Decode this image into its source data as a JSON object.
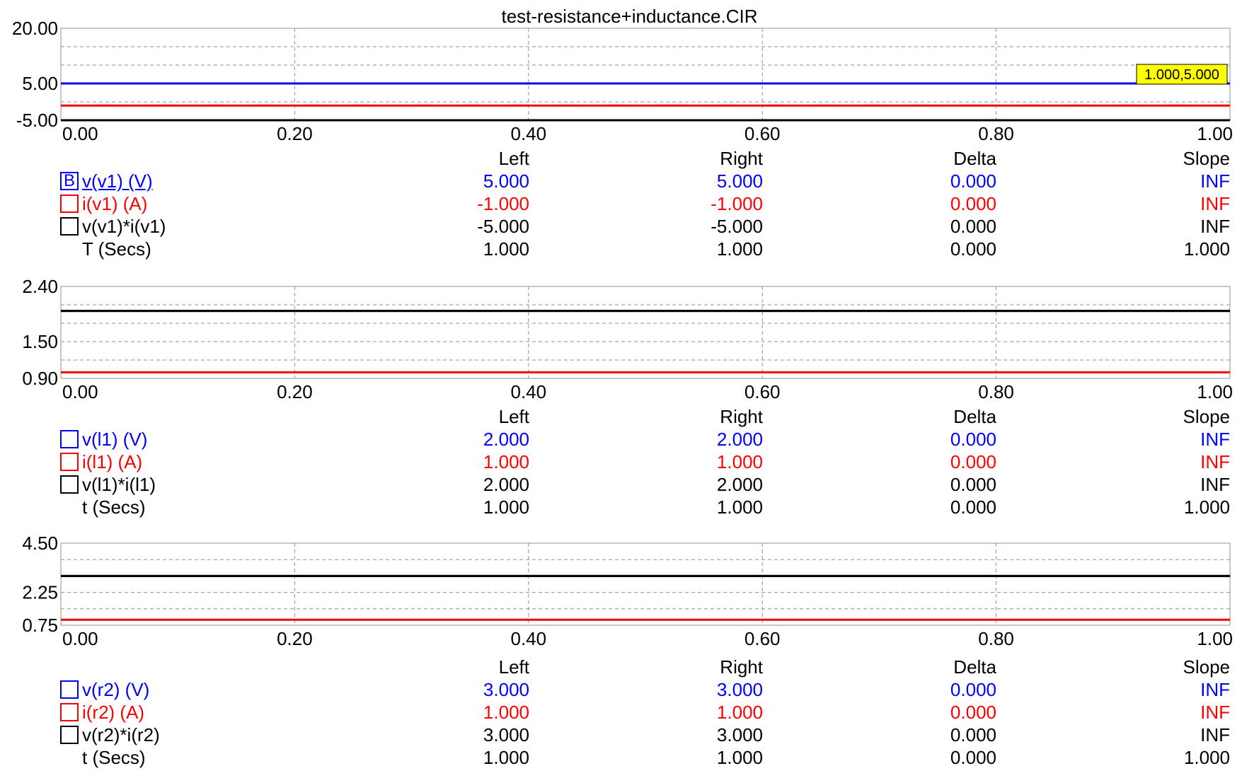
{
  "title": "test-resistance+inductance.CIR",
  "colors": {
    "blue": "#0000ff",
    "red": "#ff0000",
    "black": "#000000",
    "grid": "#909090",
    "marker": "#ffff00"
  },
  "columns": {
    "left": "Left",
    "right": "Right",
    "delta": "Delta",
    "slope": "Slope"
  },
  "chart_data": [
    {
      "type": "line",
      "x_ticks": [
        "0.00",
        "0.20",
        "0.40",
        "0.60",
        "0.80",
        "1.00"
      ],
      "xlim": [
        0,
        1
      ],
      "ylim": [
        -5,
        20
      ],
      "y_ticks": [
        "20.00",
        "5.00",
        "-5.00"
      ],
      "series": [
        {
          "name": "v(v1) (V)",
          "color": "#0000ff",
          "x": [
            0,
            1
          ],
          "y": [
            5,
            5
          ]
        },
        {
          "name": "i(v1) (A)",
          "color": "#ff0000",
          "x": [
            0,
            1
          ],
          "y": [
            -1,
            -1
          ]
        },
        {
          "name": "v(v1)*i(v1)",
          "color": "#000000",
          "x": [
            0,
            1
          ],
          "y": [
            -5,
            -5
          ]
        }
      ],
      "marker": {
        "x": 1,
        "y": 5,
        "text": "1.000,5.000"
      }
    },
    {
      "type": "line",
      "x_ticks": [
        "0.00",
        "0.20",
        "0.40",
        "0.60",
        "0.80",
        "1.00"
      ],
      "xlim": [
        0,
        1
      ],
      "ylim": [
        0.9,
        2.4
      ],
      "y_ticks": [
        "2.40",
        "1.50",
        "0.90"
      ],
      "series": [
        {
          "name": "v(l1) (V)",
          "color": "#0000ff",
          "x": [
            0,
            1
          ],
          "y": [
            2,
            2
          ]
        },
        {
          "name": "i(l1) (A)",
          "color": "#ff0000",
          "x": [
            0,
            1
          ],
          "y": [
            1,
            1
          ]
        },
        {
          "name": "v(l1)*i(l1)",
          "color": "#000000",
          "x": [
            0,
            1
          ],
          "y": [
            2,
            2
          ]
        }
      ]
    },
    {
      "type": "line",
      "x_ticks": [
        "0.00",
        "0.20",
        "0.40",
        "0.60",
        "0.80",
        "1.00"
      ],
      "xlim": [
        0,
        1
      ],
      "ylim": [
        0.75,
        4.5
      ],
      "y_ticks": [
        "4.50",
        "2.25",
        "0.75"
      ],
      "series": [
        {
          "name": "v(r2) (V)",
          "color": "#0000ff",
          "x": [
            0,
            1
          ],
          "y": [
            3,
            3
          ]
        },
        {
          "name": "i(r2) (A)",
          "color": "#ff0000",
          "x": [
            0,
            1
          ],
          "y": [
            1,
            1
          ]
        },
        {
          "name": "v(r2)*i(r2)",
          "color": "#000000",
          "x": [
            0,
            1
          ],
          "y": [
            3,
            3
          ]
        }
      ]
    }
  ],
  "tables": [
    {
      "rows": [
        {
          "box": "B",
          "label": "v(v1) (V)",
          "color": "blue",
          "left": "5.000",
          "right": "5.000",
          "delta": "0.000",
          "slope": "INF"
        },
        {
          "box": "",
          "label": "i(v1) (A)",
          "color": "red",
          "left": "-1.000",
          "right": "-1.000",
          "delta": "0.000",
          "slope": "INF"
        },
        {
          "box": "",
          "label": "v(v1)*i(v1)",
          "color": "black",
          "left": "-5.000",
          "right": "-5.000",
          "delta": "0.000",
          "slope": "INF"
        }
      ],
      "time": {
        "label": "T (Secs)",
        "left": "1.000",
        "right": "1.000",
        "delta": "0.000",
        "slope": "1.000"
      }
    },
    {
      "rows": [
        {
          "box": "",
          "label": "v(l1) (V)",
          "color": "blue",
          "left": "2.000",
          "right": "2.000",
          "delta": "0.000",
          "slope": "INF"
        },
        {
          "box": "",
          "label": "i(l1) (A)",
          "color": "red",
          "left": "1.000",
          "right": "1.000",
          "delta": "0.000",
          "slope": "INF"
        },
        {
          "box": "",
          "label": "v(l1)*i(l1)",
          "color": "black",
          "left": "2.000",
          "right": "2.000",
          "delta": "0.000",
          "slope": "INF"
        }
      ],
      "time": {
        "label": "t (Secs)",
        "left": "1.000",
        "right": "1.000",
        "delta": "0.000",
        "slope": "1.000"
      }
    },
    {
      "rows": [
        {
          "box": "",
          "label": "v(r2) (V)",
          "color": "blue",
          "left": "3.000",
          "right": "3.000",
          "delta": "0.000",
          "slope": "INF"
        },
        {
          "box": "",
          "label": "i(r2) (A)",
          "color": "red",
          "left": "1.000",
          "right": "1.000",
          "delta": "0.000",
          "slope": "INF"
        },
        {
          "box": "",
          "label": "v(r2)*i(r2)",
          "color": "black",
          "left": "3.000",
          "right": "3.000",
          "delta": "0.000",
          "slope": "INF"
        }
      ],
      "time": {
        "label": "t (Secs)",
        "left": "1.000",
        "right": "1.000",
        "delta": "0.000",
        "slope": "1.000"
      }
    }
  ]
}
